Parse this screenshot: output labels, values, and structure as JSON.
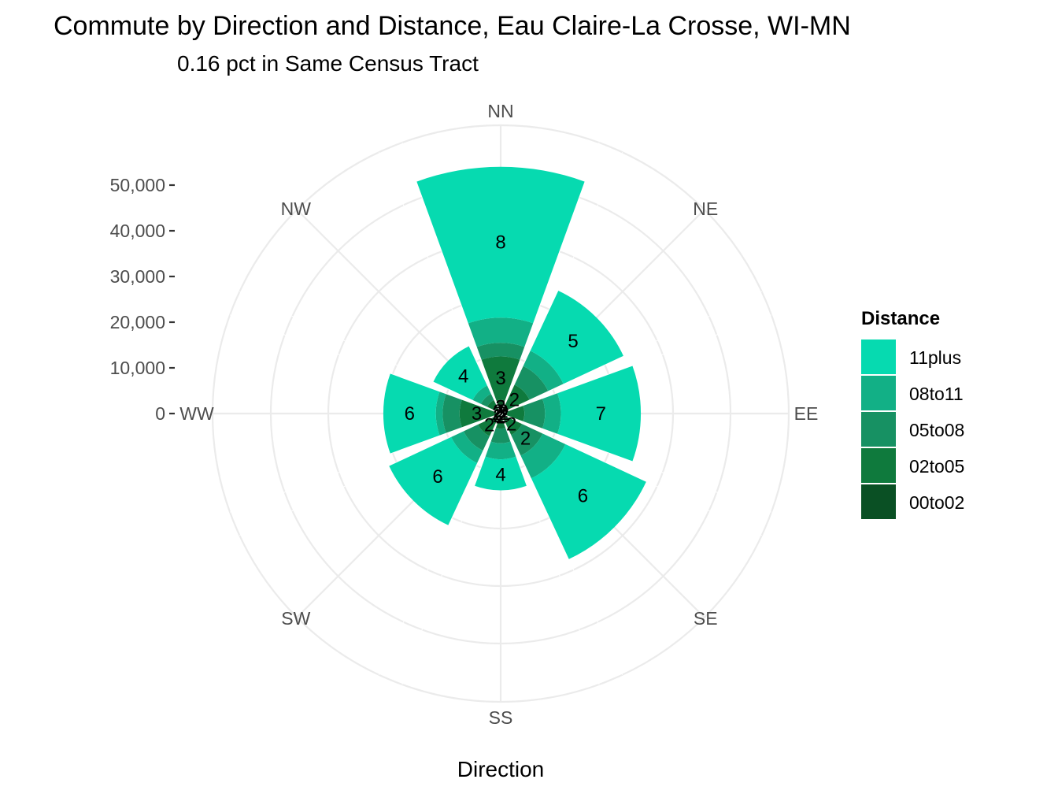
{
  "chart_data": {
    "type": "bar",
    "coord": "polar",
    "title": "Commute by Direction and Distance, Eau Claire-La Crosse, WI-MN",
    "subtitle": "0.16 pct in Same Census Tract",
    "xlabel": "Direction",
    "categories": [
      "NN",
      "NE",
      "EE",
      "SE",
      "SS",
      "SW",
      "WW",
      "NW"
    ],
    "radial_ticks": [
      0,
      10000,
      20000,
      30000,
      40000,
      50000
    ],
    "radial_tick_labels": [
      "0",
      "10,000",
      "20,000",
      "30,000",
      "40,000",
      "50,000"
    ],
    "ylim": [
      0,
      62000
    ],
    "legend_title": "Distance",
    "legend_position": "right",
    "grid": true,
    "series": [
      {
        "name": "00to02",
        "color": "#0a5024",
        "values": [
          3000,
          1500,
          1500,
          1500,
          1500,
          1500,
          1500,
          1500
        ],
        "labels": [
          "3",
          "2",
          "2",
          "2",
          "2",
          "2",
          "2",
          "2"
        ]
      },
      {
        "name": "02to05",
        "color": "#0f7a3d",
        "values": [
          9500,
          5500,
          3700,
          3700,
          1800,
          4000,
          7500,
          1800
        ],
        "labels": [
          "3",
          "2",
          "",
          "2",
          "",
          "2",
          "3",
          ""
        ]
      },
      {
        "name": "05to08",
        "color": "#179163",
        "values": [
          3000,
          4500,
          4500,
          5000,
          3200,
          3500,
          3700,
          1500
        ],
        "labels": [
          "",
          "",
          "",
          "2",
          "",
          "",
          "",
          ""
        ]
      },
      {
        "name": "08to11",
        "color": "#12b086",
        "values": [
          5500,
          3700,
          3500,
          5500,
          3500,
          3000,
          1500,
          2000
        ],
        "labels": [
          "",
          "",
          "",
          "",
          "",
          "",
          "",
          ""
        ]
      },
      {
        "name": "11plus",
        "color": "#06dab0",
        "values": [
          33000,
          14500,
          17500,
          19500,
          6800,
          15000,
          11500,
          9500
        ],
        "labels": [
          "8",
          "5",
          "7",
          "6",
          "4",
          "6",
          "6",
          "4"
        ]
      }
    ],
    "legend_order": [
      "11plus",
      "08to11",
      "05to08",
      "02to05",
      "00to02"
    ]
  }
}
